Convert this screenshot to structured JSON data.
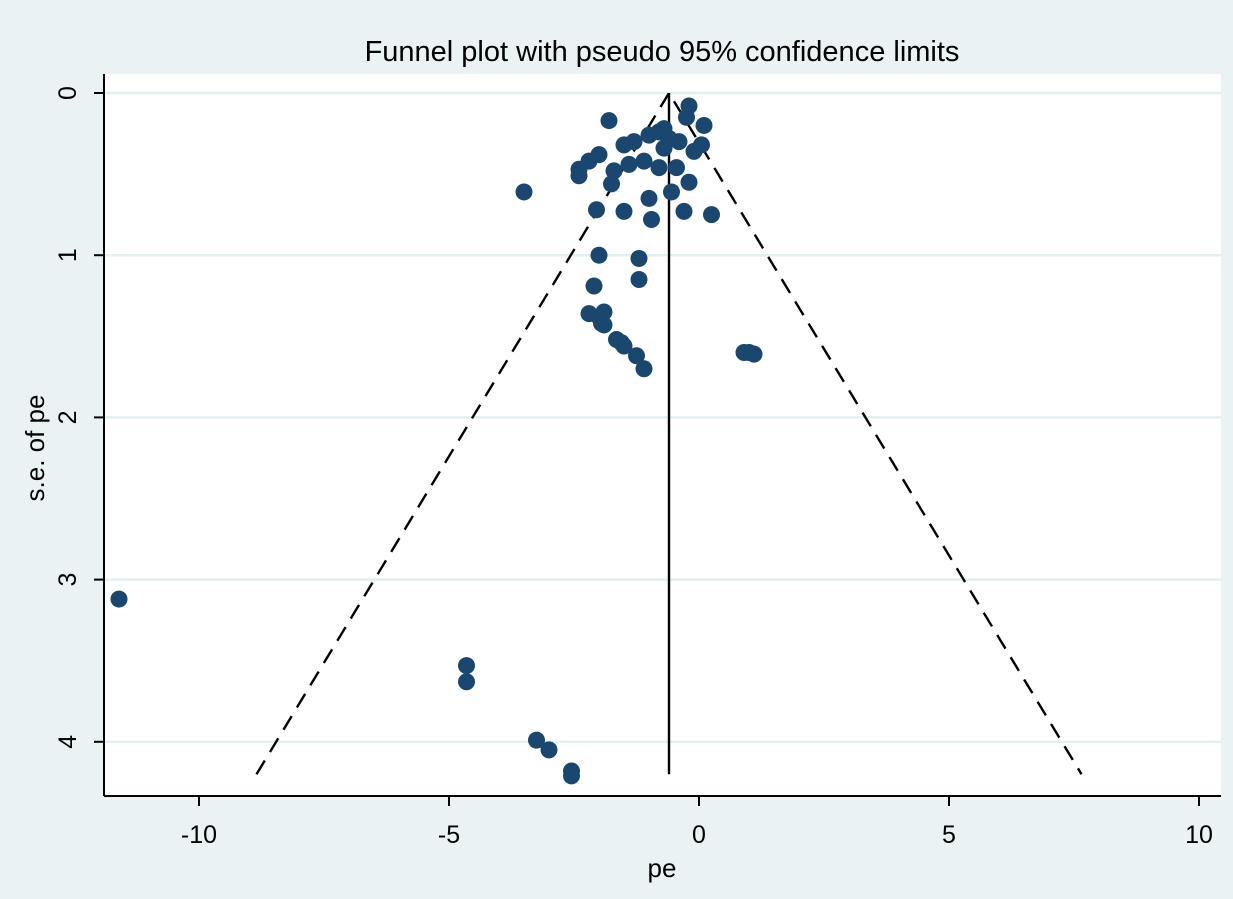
{
  "chart_data": {
    "type": "scatter",
    "title": "Funnel plot with pseudo 95% confidence limits",
    "xlabel": "pe",
    "ylabel": "s.e. of pe",
    "xlim": [
      -12,
      10.4
    ],
    "ylim": [
      0,
      4.3
    ],
    "y_reversed": true,
    "x_ticks": [
      -10,
      -5,
      0,
      5,
      10
    ],
    "x_tick_labels": [
      "-10",
      "-5",
      "0",
      "5",
      "10"
    ],
    "y_ticks": [
      0,
      1,
      2,
      3,
      4
    ],
    "y_tick_labels": [
      "0",
      "1",
      "2",
      "3",
      "4"
    ],
    "grid": "horizontal",
    "colors": {
      "background": "#eaf2f3",
      "plot_area": "#ffffff",
      "grid": "#e4eff1",
      "marker": "#1a476f",
      "line": "#000000"
    },
    "pooled_estimate": -0.6,
    "funnel": {
      "apex": [
        -0.6,
        0
      ],
      "left_base": [
        -8.85,
        4.2
      ],
      "right_base": [
        7.65,
        4.2
      ],
      "center_base": [
        -0.6,
        4.2
      ]
    },
    "points": [
      {
        "x": -0.2,
        "y": 0.08
      },
      {
        "x": -0.25,
        "y": 0.15
      },
      {
        "x": 0.1,
        "y": 0.2
      },
      {
        "x": -1.8,
        "y": 0.17
      },
      {
        "x": -0.7,
        "y": 0.22
      },
      {
        "x": -0.8,
        "y": 0.24
      },
      {
        "x": -1.0,
        "y": 0.26
      },
      {
        "x": -0.6,
        "y": 0.28
      },
      {
        "x": -1.3,
        "y": 0.3
      },
      {
        "x": -0.4,
        "y": 0.3
      },
      {
        "x": -1.5,
        "y": 0.32
      },
      {
        "x": 0.05,
        "y": 0.32
      },
      {
        "x": -0.7,
        "y": 0.34
      },
      {
        "x": -0.1,
        "y": 0.36
      },
      {
        "x": -2.0,
        "y": 0.38
      },
      {
        "x": -2.2,
        "y": 0.42
      },
      {
        "x": -1.1,
        "y": 0.42
      },
      {
        "x": -1.4,
        "y": 0.44
      },
      {
        "x": -0.8,
        "y": 0.46
      },
      {
        "x": -0.45,
        "y": 0.46
      },
      {
        "x": -2.4,
        "y": 0.47
      },
      {
        "x": -1.7,
        "y": 0.48
      },
      {
        "x": -2.4,
        "y": 0.51
      },
      {
        "x": -0.2,
        "y": 0.55
      },
      {
        "x": -1.75,
        "y": 0.56
      },
      {
        "x": -3.5,
        "y": 0.61
      },
      {
        "x": -0.55,
        "y": 0.61
      },
      {
        "x": -1.0,
        "y": 0.65
      },
      {
        "x": -2.05,
        "y": 0.72
      },
      {
        "x": -1.5,
        "y": 0.73
      },
      {
        "x": -0.3,
        "y": 0.73
      },
      {
        "x": 0.25,
        "y": 0.75
      },
      {
        "x": -0.95,
        "y": 0.78
      },
      {
        "x": -2.0,
        "y": 1.0
      },
      {
        "x": -1.2,
        "y": 1.02
      },
      {
        "x": -1.2,
        "y": 1.15
      },
      {
        "x": -2.1,
        "y": 1.19
      },
      {
        "x": -2.2,
        "y": 1.36
      },
      {
        "x": -1.9,
        "y": 1.35
      },
      {
        "x": -2.0,
        "y": 1.38
      },
      {
        "x": -1.95,
        "y": 1.42
      },
      {
        "x": -1.9,
        "y": 1.43
      },
      {
        "x": -1.65,
        "y": 1.52
      },
      {
        "x": -1.55,
        "y": 1.54
      },
      {
        "x": -1.5,
        "y": 1.56
      },
      {
        "x": -1.25,
        "y": 1.62
      },
      {
        "x": -1.1,
        "y": 1.7
      },
      {
        "x": 0.9,
        "y": 1.6
      },
      {
        "x": 1.0,
        "y": 1.6
      },
      {
        "x": 1.1,
        "y": 1.61
      },
      {
        "x": -11.6,
        "y": 3.12
      },
      {
        "x": -4.65,
        "y": 3.53
      },
      {
        "x": -4.65,
        "y": 3.63
      },
      {
        "x": -3.25,
        "y": 3.99
      },
      {
        "x": -3.0,
        "y": 4.05
      },
      {
        "x": -2.55,
        "y": 4.18
      },
      {
        "x": -2.55,
        "y": 4.21
      }
    ]
  }
}
